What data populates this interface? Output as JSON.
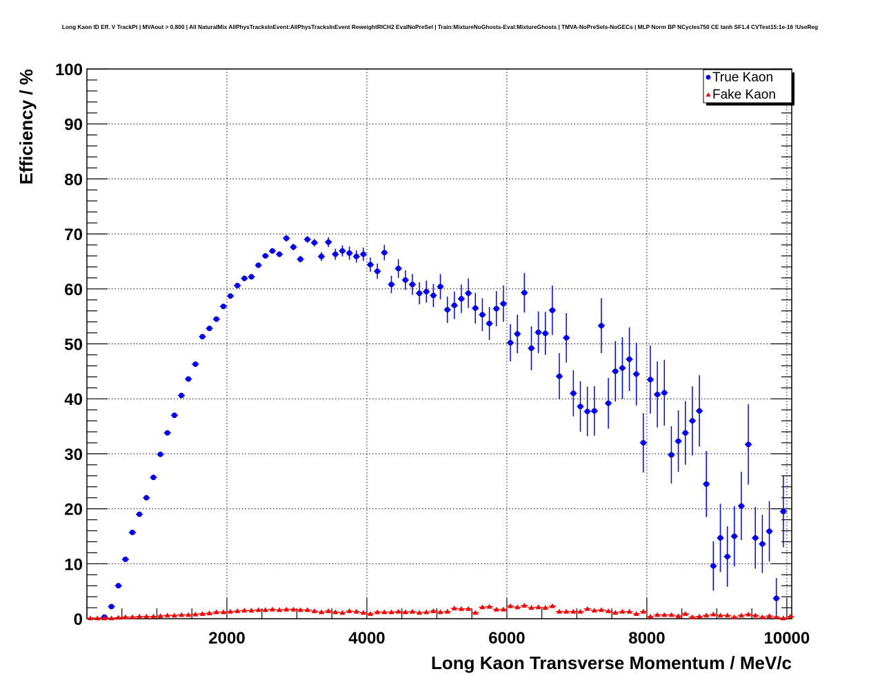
{
  "chart_data": {
    "type": "scatter",
    "title": "Long Kaon ID Eff. V TrackPt | MVAout > 0.800 | All NaturalMix AllPhysTracksInEvent:AllPhysTracksInEvent ReweightRICH2 EvalNoPreSel | Train:MixtureNoGhosts-Eval:MixtureGhosts | TMVA-NoPreSels-NoGECs | MLP Norm BP NCycles750 CE tanh SF1.4 CVTest15:1e-16 !UseReg",
    "xlabel": "Long Kaon Transverse Momentum / MeV/c",
    "ylabel": "Efficiency / %",
    "xlim": [
      0,
      10070
    ],
    "ylim": [
      0,
      100
    ],
    "grid": true,
    "legend_position": "top-right",
    "x_ticks": [
      "2000",
      "4000",
      "6000",
      "8000",
      "10000"
    ],
    "x_tick_values": [
      2000,
      4000,
      6000,
      8000,
      10000
    ],
    "y_ticks": [
      "0",
      "10",
      "20",
      "30",
      "40",
      "50",
      "60",
      "70",
      "80",
      "90",
      "100"
    ],
    "y_tick_values": [
      0,
      10,
      20,
      30,
      40,
      50,
      60,
      70,
      80,
      90,
      100
    ],
    "bin_width": 100,
    "series": [
      {
        "name": "True Kaon",
        "color": "#0000ff",
        "marker": "circle",
        "x_start": 250,
        "values": [
          0.3,
          2.2,
          6,
          10.8,
          15.7,
          19,
          22,
          25.7,
          29.9,
          33.8,
          37,
          40.6,
          43.6,
          46.3,
          51.3,
          52.8,
          54.5,
          56.8,
          58.7,
          60.6,
          61.9,
          62.2,
          64.3,
          66,
          66.9,
          66.3,
          69.2,
          67.6,
          65.4,
          69,
          68.4,
          65.9,
          68.5,
          66.3,
          66.9,
          66.5,
          65.9,
          66.3,
          64.4,
          63.2,
          66.6,
          60.8,
          63.7,
          61.6,
          60.8,
          59.2,
          59.5,
          58.8,
          60.4,
          56.2,
          57,
          58.2,
          59.2,
          56.5,
          55.3,
          53.7,
          56.4,
          57.3,
          50.2,
          51.8,
          59.3,
          49.2,
          52.1,
          51.9,
          56.1,
          44.1,
          51.1,
          41,
          38.6,
          37.7,
          37.8,
          53.3,
          39.2,
          45,
          45.6,
          47.2,
          44.5,
          32,
          43.5,
          40.8,
          41.1,
          29.8,
          32.3,
          33.8,
          36,
          37.8,
          24.5,
          9.6,
          14.7,
          11.3,
          15,
          20.5,
          31.7,
          14.7,
          13.6,
          15.9,
          3.7,
          19.5
        ],
        "errors": [
          0.2,
          0.2,
          0.2,
          0.2,
          0.2,
          0.2,
          0.2,
          0.2,
          0.2,
          0.2,
          0.3,
          0.3,
          0.3,
          0.3,
          0.3,
          0.3,
          0.3,
          0.3,
          0.3,
          0.3,
          0.5,
          0.5,
          0.5,
          0.5,
          0.5,
          0.5,
          0.6,
          0.6,
          0.6,
          0.6,
          0.7,
          0.8,
          0.9,
          1,
          1,
          1.2,
          1.1,
          1.2,
          1.3,
          1.4,
          1.4,
          1.6,
          1.7,
          1.8,
          1.9,
          2,
          2,
          2.1,
          2.3,
          2.4,
          2.5,
          2.6,
          2.7,
          2.8,
          3,
          3,
          3.2,
          3.3,
          3.4,
          3.5,
          3.6,
          4,
          3.8,
          3.9,
          4.5,
          4.2,
          4.5,
          4.2,
          4.6,
          4.5,
          4.5,
          5,
          4.6,
          5.5,
          5.6,
          5.8,
          5.7,
          5.4,
          6.2,
          6,
          6,
          5.2,
          5.6,
          5.8,
          6.3,
          6.5,
          6,
          4.5,
          6.2,
          5.5,
          5.5,
          6.2,
          7.3,
          5.6,
          5.3,
          5.5,
          3.7,
          6.5
        ]
      },
      {
        "name": "Fake Kaon",
        "color": "#ff0000",
        "marker": "triangle",
        "x_start": 50,
        "values": [
          0.1,
          0.1,
          0.1,
          0.1,
          0.2,
          0.3,
          0.3,
          0.4,
          0.4,
          0.4,
          0.5,
          0.6,
          0.6,
          0.7,
          0.7,
          0.8,
          0.9,
          1.0,
          1.2,
          1.2,
          1.3,
          1.4,
          1.5,
          1.5,
          1.6,
          1.6,
          1.7,
          1.6,
          1.7,
          1.7,
          1.6,
          1.6,
          1.4,
          1.2,
          1.4,
          1.2,
          1.1,
          1.4,
          1.3,
          1.1,
          0.9,
          1.2,
          1.2,
          1.2,
          1.3,
          1.2,
          1.3,
          1.1,
          1.2,
          1.4,
          1.2,
          1.3,
          1.9,
          1.8,
          1.8,
          1.1,
          2.1,
          2.2,
          1.7,
          1.7,
          2.3,
          2.1,
          2.4,
          2.0,
          2.1,
          2.0,
          2.3,
          1.3,
          1.3,
          1.3,
          1.3,
          1.8,
          1.5,
          1.6,
          1.4,
          1.1,
          1.3,
          1.3,
          0.9,
          1.3,
          0.4,
          0.7,
          0.7,
          0.7,
          0.5,
          0.9,
          0.3,
          0.4,
          0.6,
          0.8,
          0.6,
          0.6,
          0.3,
          0.6,
          0.8,
          0.6,
          0.3,
          0.5,
          0.3,
          0.1,
          0.4
        ]
      }
    ]
  }
}
